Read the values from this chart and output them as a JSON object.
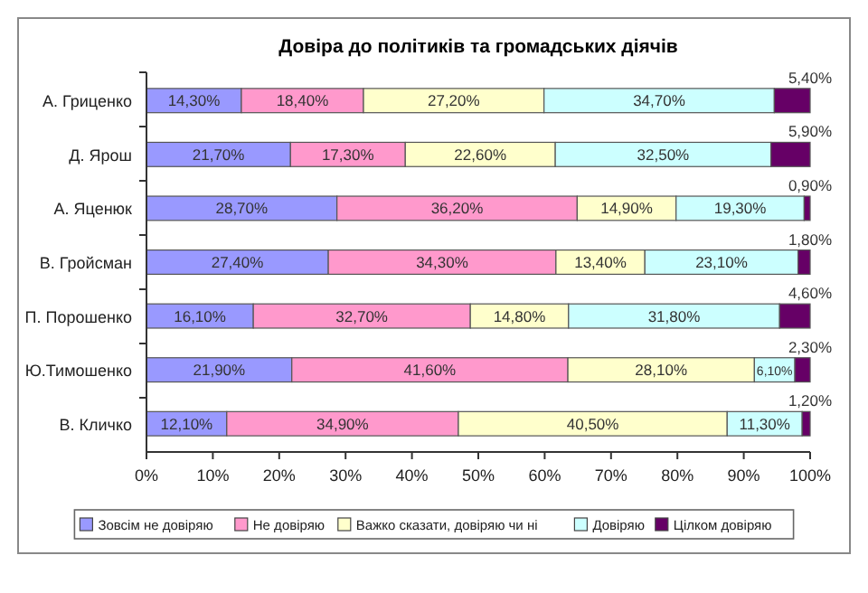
{
  "chart_data": {
    "type": "bar",
    "orientation": "horizontal",
    "stacked": true,
    "title": "Довіра до політиків та громадських діячів",
    "categories": [
      "А. Гриценко",
      "Д. Ярош",
      "А. Яценюк",
      "В. Гройсман",
      "П. Порошенко",
      "Ю.Тимошенко",
      "В. Кличко"
    ],
    "series": [
      {
        "name": "Зовсім не довіряю",
        "color": "#9999ff",
        "values": [
          14.3,
          21.7,
          28.7,
          27.4,
          16.1,
          21.9,
          12.1
        ],
        "value_labels": [
          "14,30%",
          "21,70%",
          "28,70%",
          "27,40%",
          "16,10%",
          "21,90%",
          "12,10%"
        ]
      },
      {
        "name": "Не довіряю",
        "color": "#ff99cc",
        "values": [
          18.4,
          17.3,
          36.2,
          34.3,
          32.7,
          41.6,
          34.9
        ],
        "value_labels": [
          "18,40%",
          "17,30%",
          "36,20%",
          "34,30%",
          "32,70%",
          "41,60%",
          "34,90%"
        ]
      },
      {
        "name": "Важко сказати, довіряю чи ні",
        "color": "#ffffcc",
        "values": [
          27.2,
          22.6,
          14.9,
          13.4,
          14.8,
          28.1,
          40.5
        ],
        "value_labels": [
          "27,20%",
          "22,60%",
          "14,90%",
          "13,40%",
          "14,80%",
          "28,10%",
          "40,50%"
        ]
      },
      {
        "name": "Довіряю",
        "color": "#ccffff",
        "values": [
          34.7,
          32.5,
          19.3,
          23.1,
          31.8,
          6.1,
          11.3
        ],
        "value_labels": [
          "34,70%",
          "32,50%",
          "19,30%",
          "23,10%",
          "31,80%",
          "6,10%",
          "11,30%"
        ]
      },
      {
        "name": "Цілком довіряю",
        "color": "#660066",
        "values": [
          5.4,
          5.9,
          0.9,
          1.8,
          4.6,
          2.3,
          1.2
        ],
        "value_labels": [
          "5,40%",
          "5,90%",
          "0,90%",
          "1,80%",
          "4,60%",
          "2,30%",
          "1,20%"
        ]
      }
    ],
    "xlim": [
      0,
      100
    ],
    "xticks": [
      {
        "value": 0,
        "label": "0%"
      },
      {
        "value": 10,
        "label": "10%"
      },
      {
        "value": 20,
        "label": "20%"
      },
      {
        "value": 30,
        "label": "30%"
      },
      {
        "value": 40,
        "label": "40%"
      },
      {
        "value": 50,
        "label": "50%"
      },
      {
        "value": 60,
        "label": "60%"
      },
      {
        "value": 70,
        "label": "70%"
      },
      {
        "value": 80,
        "label": "80%"
      },
      {
        "value": 90,
        "label": "90%"
      },
      {
        "value": 100,
        "label": "100%"
      }
    ],
    "grid": false,
    "legend": "bottom"
  }
}
